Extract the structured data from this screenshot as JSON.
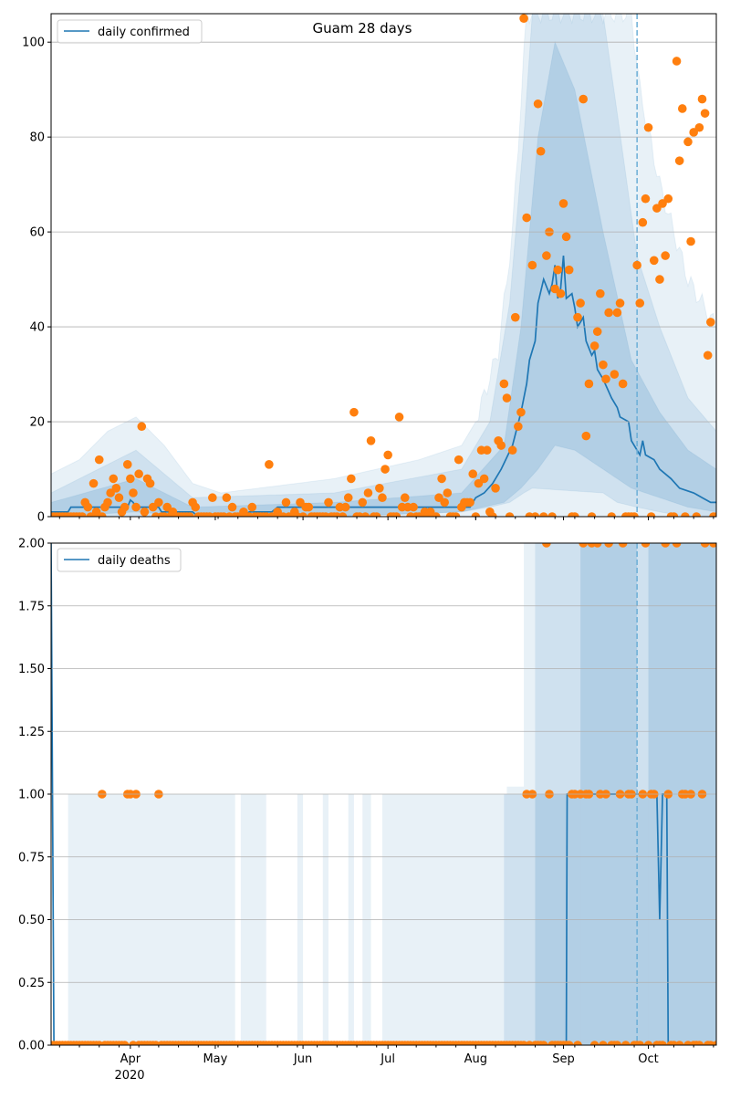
{
  "chart_data": [
    {
      "type": "line",
      "title": "Guam 28 days",
      "x_unit": "days since 2020-03-04",
      "xlim": [
        0,
        235
      ],
      "ylim": [
        0,
        106
      ],
      "yticks": [
        0,
        20,
        40,
        60,
        80,
        100
      ],
      "ytick_labels": [
        "0",
        "20",
        "40",
        "60",
        "80",
        "100"
      ],
      "grid": "horizontal",
      "legend": {
        "label": "daily confirmed",
        "placement": "top-left"
      },
      "forecast_start_day": 207,
      "model_line": [
        [
          0,
          1
        ],
        [
          6,
          1
        ],
        [
          7,
          2
        ],
        [
          27,
          2
        ],
        [
          28,
          3.5
        ],
        [
          29,
          3
        ],
        [
          30,
          2
        ],
        [
          38,
          2
        ],
        [
          39,
          1
        ],
        [
          50,
          1
        ],
        [
          52,
          0
        ],
        [
          68,
          0
        ],
        [
          70,
          1
        ],
        [
          78,
          1
        ],
        [
          80,
          2
        ],
        [
          148,
          2
        ],
        [
          150,
          4
        ],
        [
          153,
          5
        ],
        [
          156,
          7
        ],
        [
          159,
          10
        ],
        [
          163,
          15
        ],
        [
          166,
          22
        ],
        [
          168,
          28
        ],
        [
          169,
          33
        ],
        [
          171,
          37
        ],
        [
          172,
          45
        ],
        [
          174,
          50
        ],
        [
          176,
          47
        ],
        [
          177,
          49
        ],
        [
          178,
          53
        ],
        [
          179,
          46
        ],
        [
          180,
          48
        ],
        [
          181,
          55
        ],
        [
          182,
          46
        ],
        [
          184,
          47
        ],
        [
          185,
          44
        ],
        [
          186,
          40
        ],
        [
          188,
          42
        ],
        [
          189,
          37
        ],
        [
          191,
          34
        ],
        [
          192,
          35
        ],
        [
          193,
          31
        ],
        [
          195,
          29
        ],
        [
          198,
          25
        ],
        [
          200,
          23
        ],
        [
          201,
          21
        ],
        [
          204,
          20
        ],
        [
          205,
          16
        ],
        [
          207,
          14
        ],
        [
          208,
          13
        ],
        [
          209,
          16
        ],
        [
          210,
          13
        ],
        [
          213,
          12
        ],
        [
          215,
          10
        ],
        [
          219,
          8
        ],
        [
          222,
          6
        ],
        [
          227,
          5
        ],
        [
          230,
          4
        ],
        [
          233,
          3
        ],
        [
          235,
          3
        ]
      ],
      "bands": [
        {
          "level": "outer",
          "points": [
            [
              0,
              0,
              9
            ],
            [
              10,
              0,
              12
            ],
            [
              20,
              0,
              18
            ],
            [
              30,
              0,
              21
            ],
            [
              40,
              0,
              15
            ],
            [
              50,
              0,
              7
            ],
            [
              60,
              0,
              5
            ],
            [
              100,
              0,
              8
            ],
            [
              130,
              0,
              12
            ],
            [
              145,
              0,
              15
            ],
            [
              150,
              0,
              20
            ],
            [
              158,
              0,
              35
            ],
            [
              163,
              0,
              60
            ],
            [
              168,
              0,
              106
            ],
            [
              205,
              0,
              106
            ],
            [
              208,
              0,
              90
            ],
            [
              215,
              0,
              70
            ],
            [
              225,
              0,
              50
            ],
            [
              235,
              0,
              40
            ]
          ]
        },
        {
          "level": "middle",
          "points": [
            [
              0,
              0,
              5
            ],
            [
              30,
              0,
              14
            ],
            [
              50,
              0,
              4
            ],
            [
              100,
              0,
              5
            ],
            [
              145,
              1,
              10
            ],
            [
              155,
              2,
              20
            ],
            [
              162,
              3,
              45
            ],
            [
              167,
              5,
              80
            ],
            [
              170,
              6,
              106
            ],
            [
              195,
              5,
              106
            ],
            [
              200,
              3,
              85
            ],
            [
              207,
              2,
              55
            ],
            [
              215,
              1,
              40
            ],
            [
              225,
              0,
              25
            ],
            [
              235,
              0,
              18
            ]
          ]
        },
        {
          "level": "inner",
          "points": [
            [
              0,
              0,
              3
            ],
            [
              30,
              1,
              8
            ],
            [
              50,
              0,
              2
            ],
            [
              100,
              0,
              3
            ],
            [
              145,
              1,
              5
            ],
            [
              160,
              3,
              15
            ],
            [
              166,
              6,
              40
            ],
            [
              172,
              10,
              80
            ],
            [
              178,
              15,
              100
            ],
            [
              185,
              14,
              90
            ],
            [
              195,
              10,
              60
            ],
            [
              205,
              6,
              33
            ],
            [
              215,
              4,
              22
            ],
            [
              225,
              2,
              14
            ],
            [
              235,
              1,
              10
            ]
          ]
        }
      ],
      "observed_nonzero": [
        [
          12,
          3
        ],
        [
          13,
          2
        ],
        [
          15,
          7
        ],
        [
          16,
          1
        ],
        [
          17,
          12
        ],
        [
          19,
          2
        ],
        [
          20,
          3
        ],
        [
          21,
          5
        ],
        [
          22,
          8
        ],
        [
          23,
          6
        ],
        [
          24,
          4
        ],
        [
          25,
          1
        ],
        [
          26,
          2
        ],
        [
          27,
          11
        ],
        [
          28,
          8
        ],
        [
          29,
          5
        ],
        [
          30,
          2
        ],
        [
          31,
          9
        ],
        [
          32,
          19
        ],
        [
          33,
          1
        ],
        [
          34,
          8
        ],
        [
          35,
          7
        ],
        [
          36,
          2
        ],
        [
          38,
          3
        ],
        [
          41,
          2
        ],
        [
          43,
          1
        ],
        [
          50,
          3
        ],
        [
          51,
          2
        ],
        [
          57,
          4
        ],
        [
          62,
          4
        ],
        [
          64,
          2
        ],
        [
          68,
          1
        ],
        [
          71,
          2
        ],
        [
          77,
          11
        ],
        [
          80,
          1
        ],
        [
          83,
          3
        ],
        [
          86,
          1
        ],
        [
          88,
          3
        ],
        [
          90,
          2
        ],
        [
          91,
          2
        ],
        [
          98,
          3
        ],
        [
          102,
          2
        ],
        [
          104,
          2
        ],
        [
          105,
          4
        ],
        [
          106,
          8
        ],
        [
          107,
          22
        ],
        [
          110,
          3
        ],
        [
          112,
          5
        ],
        [
          113,
          16
        ],
        [
          116,
          6
        ],
        [
          117,
          4
        ],
        [
          118,
          10
        ],
        [
          119,
          13
        ],
        [
          123,
          21
        ],
        [
          124,
          2
        ],
        [
          125,
          4
        ],
        [
          126,
          2
        ],
        [
          128,
          2
        ],
        [
          132,
          1
        ],
        [
          134,
          1
        ],
        [
          137,
          4
        ],
        [
          138,
          8
        ],
        [
          139,
          3
        ],
        [
          140,
          5
        ],
        [
          144,
          12
        ],
        [
          145,
          2
        ],
        [
          146,
          3
        ],
        [
          147,
          3
        ],
        [
          148,
          3
        ],
        [
          149,
          9
        ],
        [
          151,
          7
        ],
        [
          152,
          14
        ],
        [
          153,
          8
        ],
        [
          154,
          14
        ],
        [
          155,
          1
        ],
        [
          157,
          6
        ],
        [
          158,
          16
        ],
        [
          159,
          15
        ],
        [
          160,
          28
        ],
        [
          161,
          25
        ],
        [
          163,
          14
        ],
        [
          164,
          42
        ],
        [
          165,
          19
        ],
        [
          166,
          22
        ],
        [
          167,
          105
        ],
        [
          168,
          63
        ],
        [
          170,
          53
        ],
        [
          172,
          87
        ],
        [
          173,
          77
        ],
        [
          175,
          55
        ],
        [
          176,
          60
        ],
        [
          178,
          48
        ],
        [
          179,
          52
        ],
        [
          180,
          47
        ],
        [
          181,
          66
        ],
        [
          182,
          59
        ],
        [
          183,
          52
        ],
        [
          186,
          42
        ],
        [
          187,
          45
        ],
        [
          188,
          88
        ],
        [
          189,
          17
        ],
        [
          190,
          28
        ],
        [
          192,
          36
        ],
        [
          193,
          39
        ],
        [
          194,
          47
        ],
        [
          195,
          32
        ],
        [
          196,
          29
        ],
        [
          197,
          43
        ],
        [
          199,
          30
        ],
        [
          200,
          43
        ],
        [
          201,
          45
        ],
        [
          202,
          28
        ],
        [
          207,
          53
        ],
        [
          208,
          45
        ],
        [
          209,
          62
        ],
        [
          210,
          67
        ],
        [
          211,
          82
        ],
        [
          213,
          54
        ],
        [
          214,
          65
        ],
        [
          215,
          50
        ],
        [
          216,
          66
        ],
        [
          217,
          55
        ],
        [
          218,
          67
        ],
        [
          221,
          96
        ],
        [
          222,
          75
        ],
        [
          223,
          86
        ],
        [
          225,
          79
        ],
        [
          226,
          58
        ],
        [
          227,
          81
        ],
        [
          229,
          82
        ],
        [
          230,
          88
        ],
        [
          231,
          85
        ],
        [
          232,
          34
        ],
        [
          233,
          41
        ]
      ]
    },
    {
      "type": "line",
      "x_unit": "days since 2020-03-04",
      "xlim": [
        0,
        235
      ],
      "ylim": [
        0,
        2
      ],
      "yticks": [
        0,
        0.25,
        0.5,
        0.75,
        1,
        1.25,
        1.5,
        1.75,
        2
      ],
      "ytick_labels": [
        "0.00",
        "0.25",
        "0.50",
        "0.75",
        "1.00",
        "1.25",
        "1.50",
        "1.75",
        "2.00"
      ],
      "grid": "horizontal",
      "legend": {
        "label": "daily deaths",
        "placement": "top-left"
      },
      "forecast_start_day": 207,
      "model_line": [
        [
          0,
          2
        ],
        [
          1,
          0
        ],
        [
          182,
          0
        ],
        [
          182.3,
          1
        ],
        [
          214,
          1
        ],
        [
          215,
          0.5
        ],
        [
          216,
          1
        ],
        [
          217.5,
          1
        ],
        [
          218,
          0
        ],
        [
          235,
          0
        ]
      ],
      "band_segments": [
        {
          "level": "outer",
          "segments": [
            [
              6,
              65,
              0,
              1
            ],
            [
              67,
              76,
              0,
              1
            ],
            [
              87,
              89,
              0,
              1
            ],
            [
              96,
              98,
              0,
              1
            ],
            [
              105,
              107,
              0,
              1
            ],
            [
              110,
              113,
              0,
              1
            ],
            [
              117,
              161,
              0,
              1
            ],
            [
              161,
              167,
              0,
              1.03
            ],
            [
              167,
              235,
              0,
              2
            ]
          ]
        },
        {
          "level": "middle",
          "segments": [
            [
              160,
              171,
              0,
              1
            ],
            [
              171,
              235,
              0,
              2
            ]
          ]
        },
        {
          "level": "inner",
          "segments": [
            [
              171,
              187,
              0,
              1
            ],
            [
              187,
              207,
              0,
              2
            ],
            [
              207,
              211,
              0,
              1
            ],
            [
              211,
              235,
              0,
              2
            ]
          ]
        }
      ],
      "observed_nonzero": [
        [
          18,
          1
        ],
        [
          27,
          1
        ],
        [
          28,
          1
        ],
        [
          30,
          1
        ],
        [
          38,
          1
        ],
        [
          168,
          1
        ],
        [
          170,
          1
        ],
        [
          175,
          2
        ],
        [
          176,
          1
        ],
        [
          184,
          1
        ],
        [
          185,
          1
        ],
        [
          187,
          1
        ],
        [
          188,
          2
        ],
        [
          189,
          1
        ],
        [
          190,
          1
        ],
        [
          191,
          2
        ],
        [
          193,
          2
        ],
        [
          194,
          1
        ],
        [
          196,
          1
        ],
        [
          197,
          2
        ],
        [
          201,
          1
        ],
        [
          202,
          2
        ],
        [
          204,
          1
        ],
        [
          205,
          1
        ],
        [
          209,
          1
        ],
        [
          210,
          2
        ],
        [
          212,
          1
        ],
        [
          213,
          1
        ],
        [
          217,
          2
        ],
        [
          218,
          1
        ],
        [
          221,
          2
        ],
        [
          223,
          1
        ],
        [
          224,
          1
        ],
        [
          226,
          1
        ],
        [
          230,
          1
        ],
        [
          231,
          2
        ],
        [
          234,
          2
        ]
      ]
    }
  ],
  "x_axis": {
    "ticks": [
      {
        "day": 28,
        "label": "Apr"
      },
      {
        "day": 58,
        "label": "May"
      },
      {
        "day": 89,
        "label": "Jun"
      },
      {
        "day": 119,
        "label": "Jul"
      },
      {
        "day": 150,
        "label": "Aug"
      },
      {
        "day": 181,
        "label": "Sep"
      },
      {
        "day": 211,
        "label": "Oct"
      }
    ],
    "year_label": "2020"
  },
  "colors": {
    "line": "#1f77b4",
    "observed": "#ff7f0e",
    "band": "#1f77b4",
    "grid": "#b0b0b0"
  }
}
